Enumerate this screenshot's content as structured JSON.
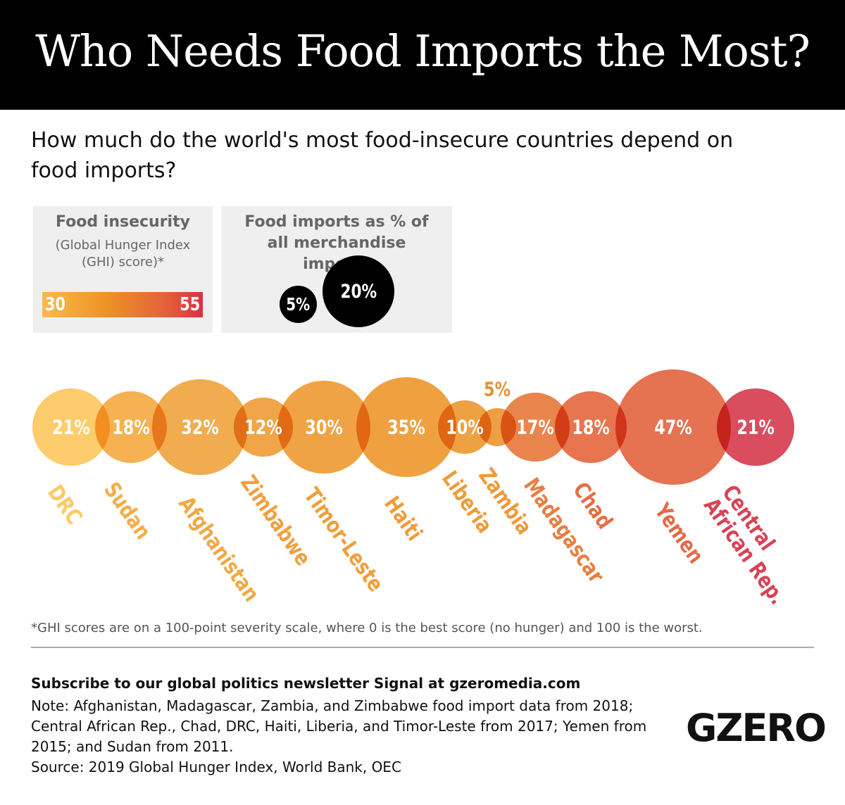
{
  "header": {
    "title": "Who Needs Food Imports the Most?"
  },
  "subtitle": "How much do the world's most food-insecure countries depend on food imports?",
  "legend": {
    "insecurity": {
      "title": "Food insecurity",
      "subtitle": "(Global Hunger Index (GHI) score)*",
      "min_label": "30",
      "max_label": "55",
      "color_min": "#fbb94b",
      "color_max": "#d83245"
    },
    "imports": {
      "title": "Food imports as % of all merchandise imports",
      "small_label": "5%",
      "large_label": "20%",
      "small_value": 5,
      "large_value": 20
    }
  },
  "chart_data": {
    "type": "bubble",
    "categories": [
      "DRC",
      "Sudan",
      "Afghanistan",
      "Zimbabwe",
      "Timor-Leste",
      "Haiti",
      "Liberia",
      "Zambia",
      "Madagascar",
      "Chad",
      "Yemen",
      "Central\nAfrican Rep."
    ],
    "values": [
      21,
      18,
      32,
      12,
      30,
      35,
      10,
      5,
      17,
      18,
      47,
      21
    ],
    "value_labels": [
      "21%",
      "18%",
      "32%",
      "12%",
      "30%",
      "35%",
      "10%",
      "5%",
      "17%",
      "18%",
      "47%",
      "21%"
    ],
    "colors": [
      "#fdc964",
      "#f5ad48",
      "#f0a845",
      "#efa03e",
      "#f09e3a",
      "#ef9c38",
      "#ee9c38",
      "#ee9a3a",
      "#e87e42",
      "#e56e46",
      "#e46a47",
      "#d84355"
    ],
    "size_encodes": "food imports as % of all merchandise imports",
    "color_encodes": "GHI score"
  },
  "footnote": "*GHI scores are on a 100-point severity scale, where 0 is the best score (no hunger) and 100 is the worst.",
  "footer": {
    "subscribe": "Subscribe to our global politics newsletter Signal at gzeromedia.com",
    "note": "Note: Afghanistan, Madagascar, Zambia, and Zimbabwe food import data from 2018; Central African Rep., Chad, DRC, Haiti, Liberia, and Timor-Leste from 2017; Yemen from 2015; and Sudan from 2011.",
    "source": "Source: 2019 Global Hunger Index, World Bank, OEC",
    "logo": "GZERO"
  }
}
